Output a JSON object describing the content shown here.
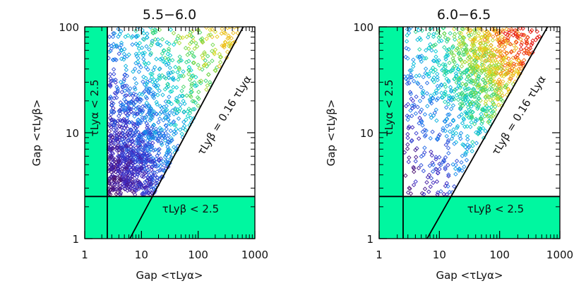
{
  "chart_data": [
    {
      "type": "scatter",
      "title": "5.5−6.0",
      "xlabel": "Gap <τLyα>",
      "ylabel": "Gap <τLyβ>",
      "xscale": "log",
      "yscale": "log",
      "xlim": [
        1,
        1000
      ],
      "ylim": [
        1,
        100
      ],
      "xticks": [
        "1",
        "10",
        "100",
        "1000"
      ],
      "yticks": [
        "1",
        "10",
        "100"
      ],
      "shaded_regions": [
        {
          "label": "τLyα < 2.5",
          "axis": "x",
          "range": [
            1,
            2.5
          ]
        },
        {
          "label": "τLyβ < 2.5",
          "axis": "y",
          "range": [
            1,
            2.5
          ]
        }
      ],
      "lines": [
        {
          "label": "τLyβ = 0.16 τLyα",
          "slope": 0.16
        }
      ],
      "color_scale": "rainbow (purple = low, red = high)",
      "points": {
        "count": 1400,
        "x_range": [
          2.6,
          500
        ],
        "y_range": [
          2.6,
          100
        ],
        "density_peak": {
          "x": 6,
          "y": 5
        },
        "max_color_level": 0.82
      }
    },
    {
      "type": "scatter",
      "title": "6.0−6.5",
      "xlabel": "Gap <τLyα>",
      "ylabel": "Gap <τLyβ>",
      "xscale": "log",
      "yscale": "log",
      "xlim": [
        1,
        1000
      ],
      "ylim": [
        1,
        100
      ],
      "xticks": [
        "1",
        "10",
        "100",
        "1000"
      ],
      "yticks": [
        "1",
        "10",
        "100"
      ],
      "shaded_regions": [
        {
          "label": "τLyα < 2.5",
          "axis": "x",
          "range": [
            1,
            2.5
          ]
        },
        {
          "label": "τLyβ < 2.5",
          "axis": "y",
          "range": [
            1,
            2.5
          ]
        }
      ],
      "lines": [
        {
          "label": "τLyβ = 0.16 τLyα",
          "slope": 0.16
        }
      ],
      "color_scale": "rainbow (purple = low, red = high)",
      "points": {
        "count": 1100,
        "x_range": [
          2.6,
          500
        ],
        "y_range": [
          2.6,
          100
        ],
        "density_peak": {
          "x": 60,
          "y": 40
        },
        "max_color_level": 1.0
      }
    }
  ]
}
